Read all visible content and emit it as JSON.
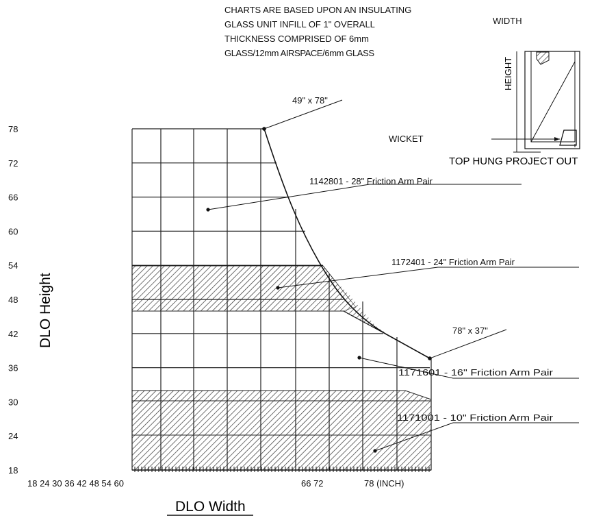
{
  "chart_data": {
    "type": "diagram",
    "title": "",
    "xlabel": "DLO Width",
    "ylabel": "DLO Height",
    "x_unit": "(INCH)",
    "x_tick_labels_left": [
      "18",
      "24",
      "30",
      "36",
      "42",
      "48",
      "54",
      "60"
    ],
    "x_tick_labels_right": [
      "66",
      "72",
      "78"
    ],
    "y_ticks": [
      78,
      72,
      66,
      60,
      54,
      48,
      42,
      36,
      30,
      24,
      18
    ],
    "x_range": [
      42,
      84
    ],
    "y_range": [
      18,
      80
    ],
    "note_lines": [
      "CHARTS ARE BASED UPON AN INSULATING",
      "GLASS UNIT INFILL OF 1\" OVERALL",
      "THICKNESS COMPRISED OF 6mm",
      "GLASS/12mm AIRSPACE/6mm GLASS"
    ],
    "window_diagram": {
      "width_label": "WIDTH",
      "height_label": "HEIGHT",
      "wicket_label": "WICKET",
      "caption": "TOP HUNG PROJECT OUT"
    },
    "corner_points": [
      {
        "label": "49\" x 78\"",
        "width": 49,
        "height": 78
      },
      {
        "label": "78\" x 37\"",
        "width": 78,
        "height": 37
      }
    ],
    "zones": [
      {
        "label": "1142801 - 28\" Friction Arm Pair",
        "pattern": "none",
        "height_range": [
          54,
          78
        ]
      },
      {
        "label": "1172401 - 24\" Friction Arm Pair",
        "pattern": "hatched",
        "height_range": [
          46.5,
          54
        ]
      },
      {
        "label": "1171601 - 16\" Friction Arm Pair",
        "pattern": "none",
        "height_range": [
          32,
          46.5
        ]
      },
      {
        "label": "1171001 - 10\" Friction Arm Pair",
        "pattern": "hatched",
        "height_range": [
          18,
          32
        ]
      }
    ]
  }
}
